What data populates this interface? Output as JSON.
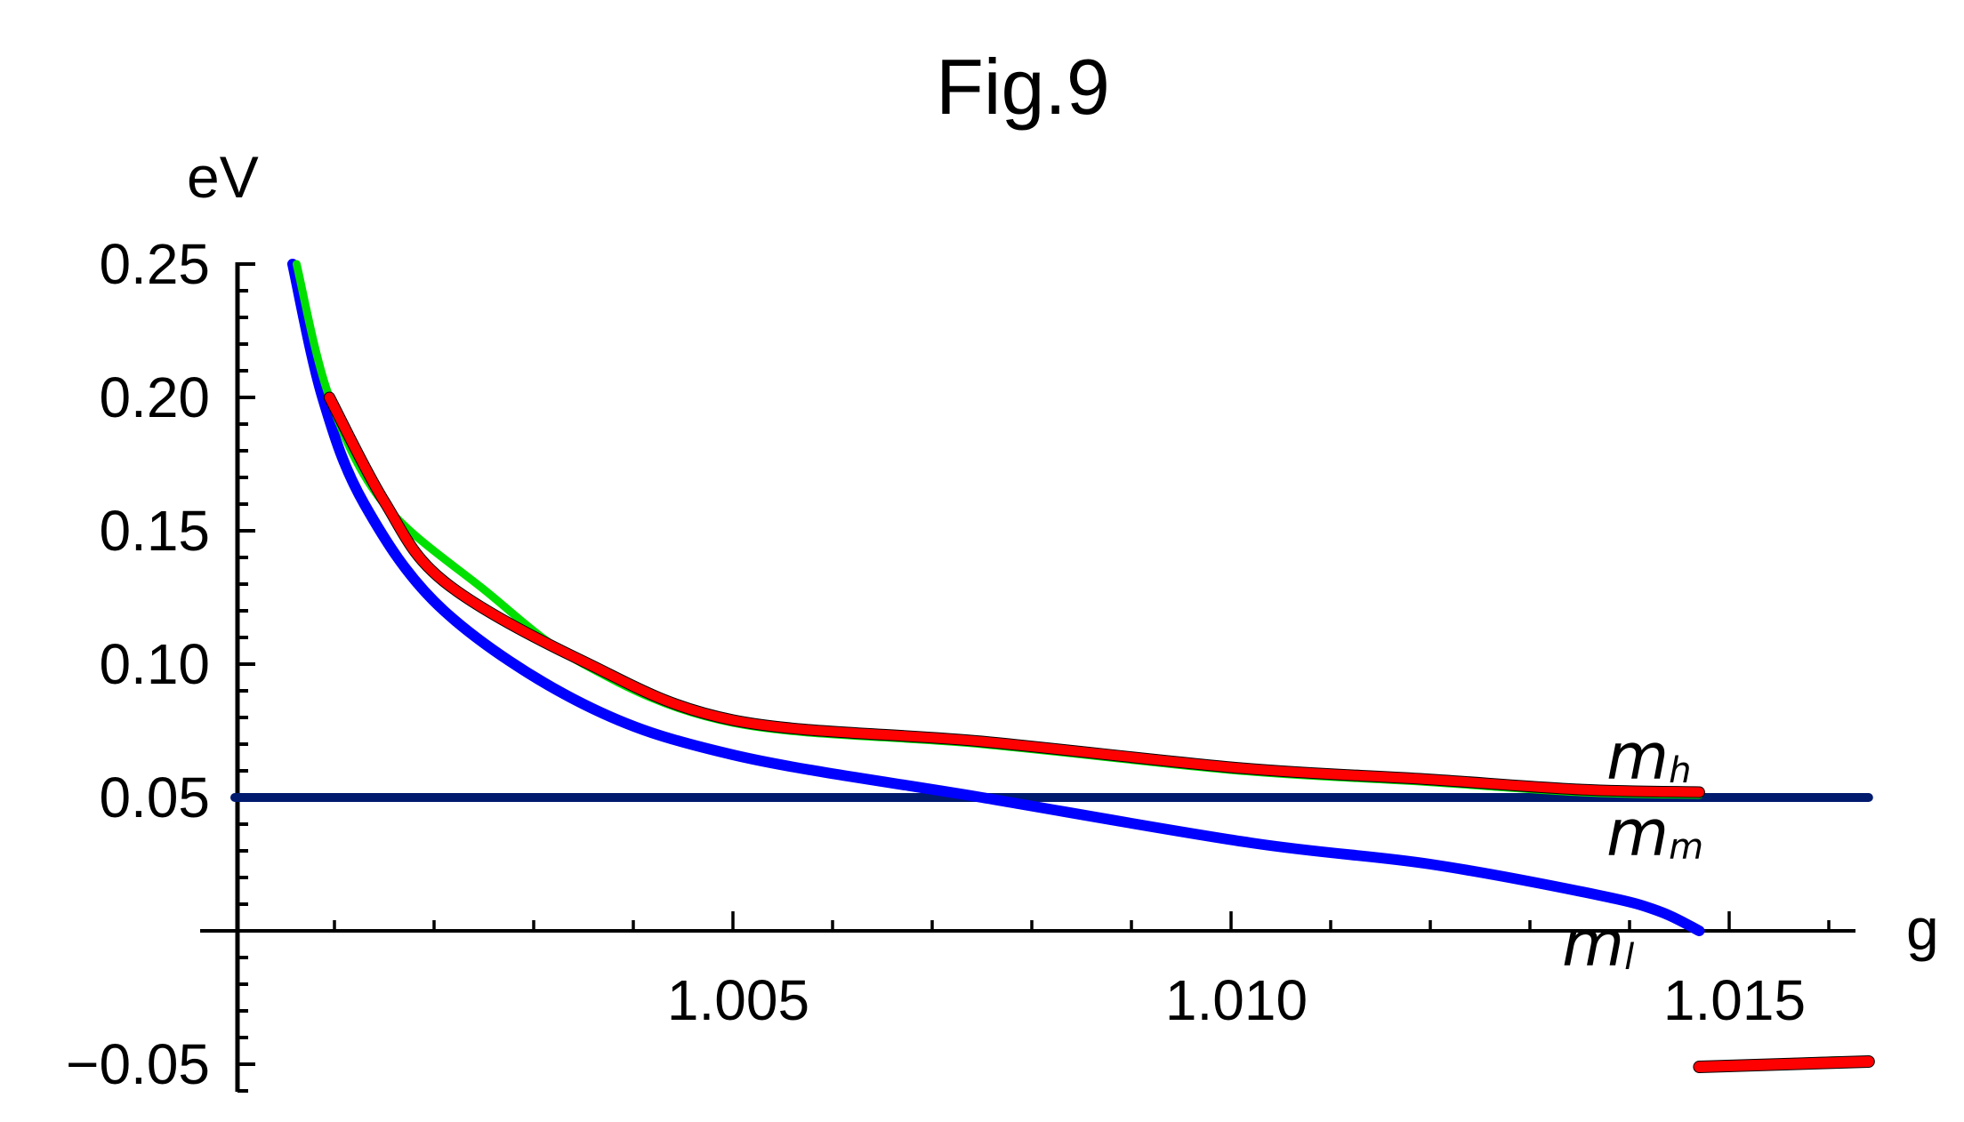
{
  "chart_data": {
    "type": "line",
    "title": "Fig.9",
    "xlabel": "g",
    "ylabel": "eV",
    "xlim": [
      0.9996,
      1.0164
    ],
    "ylim": [
      -0.06,
      0.25
    ],
    "x_ticks": [
      {
        "value": 1.005,
        "label": "1.005"
      },
      {
        "value": 1.01,
        "label": "1.010"
      },
      {
        "value": 1.015,
        "label": "1.015"
      }
    ],
    "x_minor_step": 0.001,
    "y_ticks": [
      {
        "value": 0.25,
        "label": "0.25"
      },
      {
        "value": 0.2,
        "label": "0.20"
      },
      {
        "value": 0.15,
        "label": "0.15"
      },
      {
        "value": 0.1,
        "label": "0.10"
      },
      {
        "value": 0.05,
        "label": "0.05"
      },
      {
        "value": -0.05,
        "label": "−0.05"
      }
    ],
    "y_minor_step": 0.01,
    "grid": false,
    "legend": "none (inline curve labels)",
    "series": [
      {
        "name": "m_h (green)",
        "color": "#00e000",
        "points": [
          [
            1.00062,
            0.25
          ],
          [
            1.00095,
            0.2
          ],
          [
            1.0015,
            0.16
          ],
          [
            1.0025,
            0.128
          ],
          [
            1.0035,
            0.1
          ],
          [
            1.005,
            0.078
          ],
          [
            1.0075,
            0.07
          ],
          [
            1.0101,
            0.06
          ],
          [
            1.0119,
            0.056
          ],
          [
            1.0135,
            0.052
          ],
          [
            1.0147,
            0.051
          ]
        ]
      },
      {
        "name": "m_h (red)",
        "color": "#ff0000",
        "points": [
          [
            1.00095,
            0.2
          ],
          [
            1.0015,
            0.161
          ],
          [
            1.0021,
            0.131
          ],
          [
            1.0035,
            0.101
          ],
          [
            1.005,
            0.079
          ],
          [
            1.0075,
            0.071
          ],
          [
            1.0101,
            0.061
          ],
          [
            1.0119,
            0.057
          ],
          [
            1.0135,
            0.053
          ],
          [
            1.0147,
            0.052
          ]
        ]
      },
      {
        "name": "m_m",
        "color": "#001a6e",
        "points": [
          [
            1.0,
            0.05
          ],
          [
            1.0164,
            0.05
          ]
        ]
      },
      {
        "name": "m_l",
        "color": "#0000ff",
        "points": [
          [
            1.00058,
            0.25
          ],
          [
            1.00088,
            0.2
          ],
          [
            1.0013,
            0.16
          ],
          [
            1.0021,
            0.12
          ],
          [
            1.0035,
            0.085
          ],
          [
            1.005,
            0.066
          ],
          [
            1.0075,
            0.05
          ],
          [
            1.0102,
            0.033
          ],
          [
            1.012,
            0.025
          ],
          [
            1.0137,
            0.0133
          ],
          [
            1.0143,
            0.0073
          ],
          [
            1.0147,
            0.0
          ]
        ]
      },
      {
        "name": "m_h branch (red, negative)",
        "color": "#ff0000",
        "points": [
          [
            1.0147,
            -0.051
          ],
          [
            1.0164,
            -0.049
          ]
        ]
      },
      {
        "name": "m_m branch (green, negative)",
        "color": "#00e000",
        "points": [
          [
            1.0147,
            -0.0505
          ],
          [
            1.0161,
            -0.0485
          ]
        ]
      }
    ],
    "annotations": [
      {
        "text": "m",
        "sub": "h",
        "near": [
          1.0141,
          0.057
        ]
      },
      {
        "text": "m",
        "sub": "m",
        "near": [
          1.0141,
          0.03
        ]
      },
      {
        "text": "m",
        "sub": "l",
        "near": [
          1.0136,
          -0.004
        ]
      }
    ]
  },
  "labels": {
    "title": "Fig.9",
    "ylabel": "eV",
    "xlabel": "g",
    "mh_main": "m",
    "mh_sub": "h",
    "mm_main": "m",
    "mm_sub": "m",
    "ml_main": "m",
    "ml_sub": "l"
  }
}
